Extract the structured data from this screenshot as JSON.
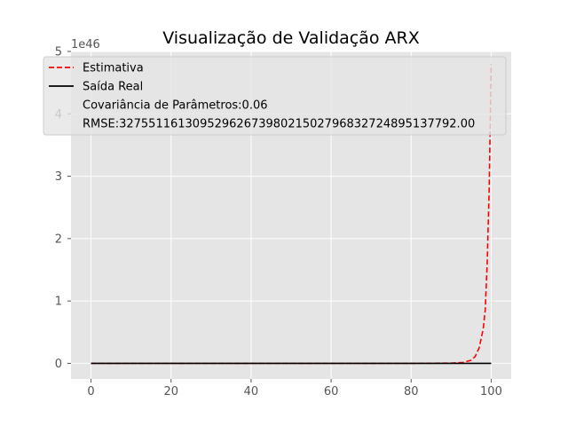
{
  "chart_data": {
    "type": "line",
    "title": "Visualização de Validação ARX",
    "xlabel": "",
    "ylabel": "",
    "xlim": [
      -5,
      105
    ],
    "ylim": [
      -0.25,
      5.0
    ],
    "y_offset_label": "1e46",
    "x_ticks": [
      0,
      20,
      40,
      60,
      80,
      100
    ],
    "x_tick_labels": [
      "0",
      "20",
      "40",
      "60",
      "80",
      "100"
    ],
    "y_ticks": [
      0,
      1,
      2,
      3,
      4,
      5
    ],
    "y_tick_labels": [
      "0",
      "1",
      "2",
      "3",
      "4",
      "5"
    ],
    "grid": true,
    "style": "ggplot",
    "legend_position": "upper-left",
    "series": [
      {
        "name": "Estimativa",
        "color": "#ff0000",
        "linestyle": "dashed",
        "x": [
          0,
          20,
          40,
          60,
          80,
          90,
          93,
          95,
          96,
          97,
          98,
          98.5,
          99,
          99.5,
          100
        ],
        "y": [
          0,
          0,
          0,
          0,
          0,
          0.004,
          0.015,
          0.05,
          0.11,
          0.25,
          0.55,
          0.85,
          1.6,
          2.8,
          4.8
        ]
      },
      {
        "name": "Saída Real",
        "color": "#000000",
        "linestyle": "solid",
        "x": [
          0,
          100
        ],
        "y": [
          0,
          0
        ]
      }
    ],
    "legend_extra": [
      "Covariância de Parâmetros:0.06",
      "RMSE:32755116130952962673980215027968327248951377​92.00"
    ]
  }
}
